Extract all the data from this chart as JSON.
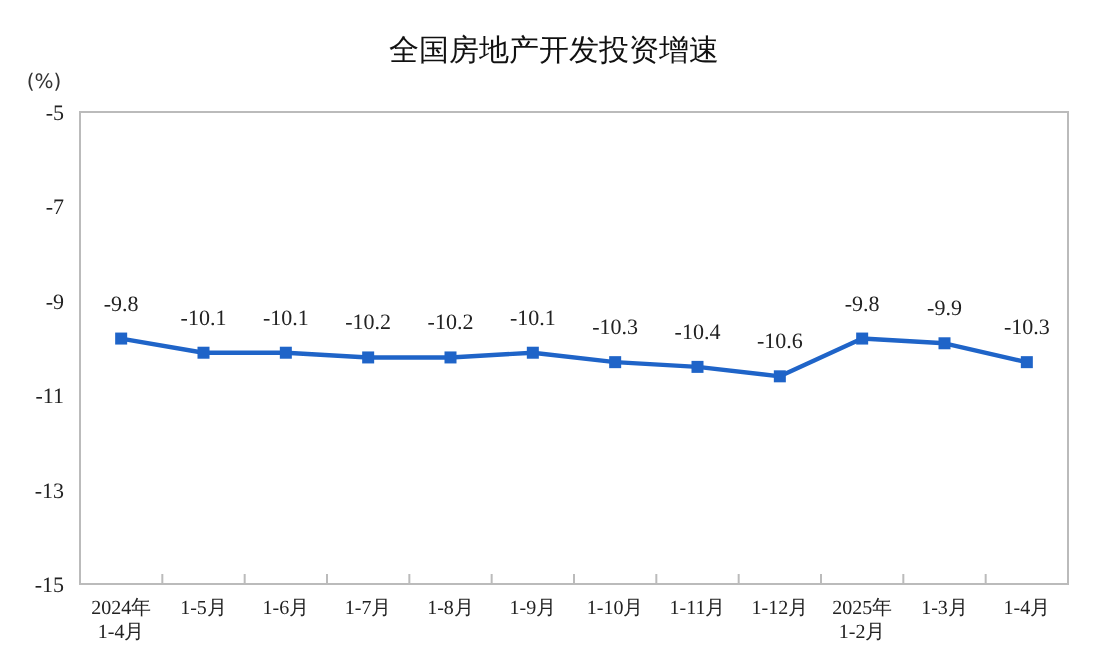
{
  "chart_data": {
    "type": "line",
    "title": "全国房地产开发投资增速",
    "ylabel": "(%)",
    "categories": [
      "2024年\n1-4月",
      "1-5月",
      "1-6月",
      "1-7月",
      "1-8月",
      "1-9月",
      "1-10月",
      "1-11月",
      "1-12月",
      "2025年\n1-2月",
      "1-3月",
      "1-4月"
    ],
    "series": [
      {
        "color": "#1f64c8",
        "values": [
          -9.8,
          -10.1,
          -10.1,
          -10.2,
          -10.2,
          -10.1,
          -10.3,
          -10.4,
          -10.6,
          -9.8,
          -9.9,
          -10.3
        ]
      }
    ],
    "ylim": [
      -15,
      -5
    ],
    "yticks": [
      -15,
      -13,
      -11,
      -9,
      -7,
      -5
    ],
    "grid": false,
    "data_labels": true,
    "marker": "square",
    "line_style": "solid"
  }
}
